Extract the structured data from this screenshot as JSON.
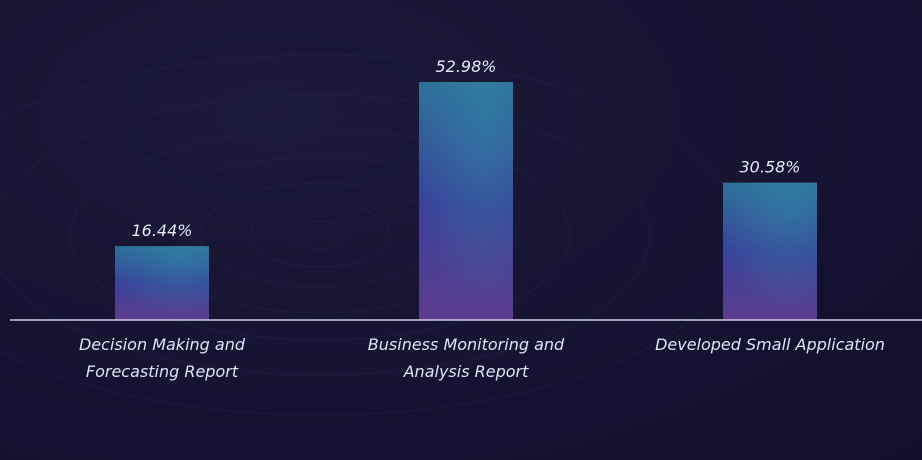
{
  "chart_data": {
    "type": "bar",
    "categories": [
      [
        "Decision Making and",
        "Forecasting Report"
      ],
      [
        "Business Monitoring and",
        "Analysis Report"
      ],
      [
        "Developed Small Application"
      ]
    ],
    "values": [
      16.44,
      52.98,
      30.58
    ],
    "value_labels": [
      "16.44%",
      "52.98%",
      "30.58%"
    ],
    "ylim": [
      0,
      60
    ],
    "grid": false,
    "legend": "none",
    "colors": {
      "bar_top": "#2f6d96",
      "bar_mid": "#3b3f98",
      "bar_bottom": "#5a3c8c",
      "baseline": "#c9cde0",
      "label": "#e6e9f5"
    }
  }
}
